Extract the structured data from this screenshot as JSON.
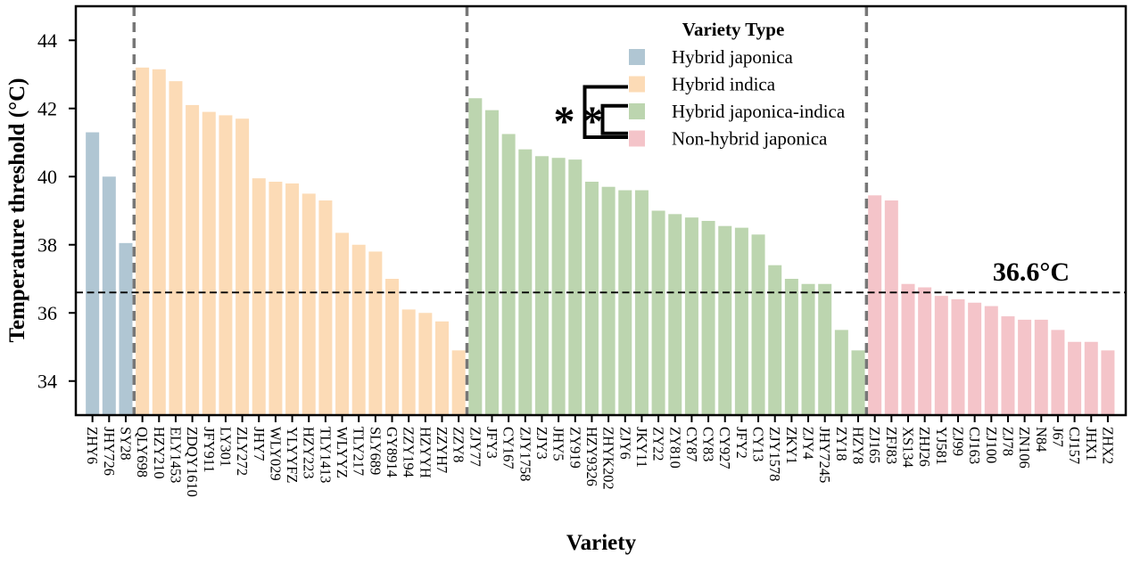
{
  "axes": {
    "y_label": "Temperature threshold (°C)",
    "x_label": "Variety"
  },
  "significance": {
    "outer": "*",
    "inner": "*"
  },
  "chart_data": {
    "type": "bar",
    "title": "",
    "ylabel": "Temperature threshold (°C)",
    "xlabel": "Variety",
    "ylim": [
      33,
      45
    ],
    "yticks": [
      34,
      36,
      38,
      40,
      42,
      44
    ],
    "grid": false,
    "legend_title": "Variety Type",
    "legend_position": "upper center",
    "threshold": {
      "value": 36.6,
      "label": "36.6°C"
    },
    "separator_color": "#777777",
    "groups": [
      {
        "name": "Hybrid japonica",
        "color": "#B0C6D3",
        "bars": [
          {
            "label": "ZHY6",
            "value": 41.3
          },
          {
            "label": "JHY726",
            "value": 40.0
          },
          {
            "label": "SY28",
            "value": 38.05
          }
        ]
      },
      {
        "name": "Hybrid indica",
        "color": "#FCDBB6",
        "bars": [
          {
            "label": "QLY698",
            "value": 43.2
          },
          {
            "label": "HZY210",
            "value": 43.15
          },
          {
            "label": "ELY1453",
            "value": 42.8
          },
          {
            "label": "ZDQY1610",
            "value": 42.1
          },
          {
            "label": "JFY911",
            "value": 41.9
          },
          {
            "label": "LY301",
            "value": 41.8
          },
          {
            "label": "ZLY272",
            "value": 41.7
          },
          {
            "label": "JHY7",
            "value": 39.95
          },
          {
            "label": "WLY029",
            "value": 39.85
          },
          {
            "label": "YLYYFZ",
            "value": 39.8
          },
          {
            "label": "HZY223",
            "value": 39.5
          },
          {
            "label": "TLY1413",
            "value": 39.3
          },
          {
            "label": "WLYYZ",
            "value": 38.35
          },
          {
            "label": "TLY217",
            "value": 38.0
          },
          {
            "label": "SLY689",
            "value": 37.8
          },
          {
            "label": "GY8914",
            "value": 37.0
          },
          {
            "label": "ZZY194",
            "value": 36.1
          },
          {
            "label": "HZYYH",
            "value": 36.0
          },
          {
            "label": "ZZYH7",
            "value": 35.75
          },
          {
            "label": "ZZY8",
            "value": 34.9
          }
        ]
      },
      {
        "name": "Hybrid japonica-indica",
        "color": "#BCD5AF",
        "bars": [
          {
            "label": "ZJY77",
            "value": 42.3
          },
          {
            "label": "JFY3",
            "value": 41.95
          },
          {
            "label": "CY167",
            "value": 41.25
          },
          {
            "label": "ZJY1758",
            "value": 40.8
          },
          {
            "label": "ZJY3",
            "value": 40.6
          },
          {
            "label": "JHY5",
            "value": 40.55
          },
          {
            "label": "ZY919",
            "value": 40.5
          },
          {
            "label": "HZY9326",
            "value": 39.85
          },
          {
            "label": "ZHYK202",
            "value": 39.7
          },
          {
            "label": "ZJY6",
            "value": 39.6
          },
          {
            "label": "JKY11",
            "value": 39.6
          },
          {
            "label": "ZY22",
            "value": 39.0
          },
          {
            "label": "ZY810",
            "value": 38.9
          },
          {
            "label": "CY87",
            "value": 38.8
          },
          {
            "label": "CY83",
            "value": 38.7
          },
          {
            "label": "CY927",
            "value": 38.55
          },
          {
            "label": "JFY2",
            "value": 38.5
          },
          {
            "label": "CY13",
            "value": 38.3
          },
          {
            "label": "ZJY1578",
            "value": 37.4
          },
          {
            "label": "ZKY1",
            "value": 37.0
          },
          {
            "label": "ZJY4",
            "value": 36.85
          },
          {
            "label": "JHY7245",
            "value": 36.85
          },
          {
            "label": "ZY18",
            "value": 35.5
          },
          {
            "label": "HZY8",
            "value": 34.9
          }
        ]
      },
      {
        "name": "Non-hybrid japonica",
        "color": "#F4C4C9",
        "bars": [
          {
            "label": "ZJ165",
            "value": 39.45
          },
          {
            "label": "ZFJ83",
            "value": 39.3
          },
          {
            "label": "XS134",
            "value": 36.85
          },
          {
            "label": "ZHJ26",
            "value": 36.75
          },
          {
            "label": "YJ581",
            "value": 36.5
          },
          {
            "label": "ZJ99",
            "value": 36.4
          },
          {
            "label": "CJ163",
            "value": 36.3
          },
          {
            "label": "ZJ100",
            "value": 36.2
          },
          {
            "label": "ZJ78",
            "value": 35.9
          },
          {
            "label": "ZN106",
            "value": 35.8
          },
          {
            "label": "N84",
            "value": 35.8
          },
          {
            "label": "J67",
            "value": 35.5
          },
          {
            "label": "CJ157",
            "value": 35.15
          },
          {
            "label": "JHX1",
            "value": 35.15
          },
          {
            "label": "ZHX2",
            "value": 34.9
          }
        ]
      }
    ]
  }
}
